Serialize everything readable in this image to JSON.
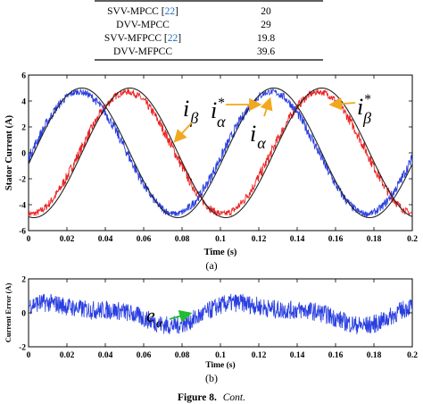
{
  "table": {
    "rows": [
      {
        "method": "SVV-MPCC",
        "ref": "22",
        "value": "20"
      },
      {
        "method": "DVV-MPCC",
        "ref": "",
        "value": "29"
      },
      {
        "method": "SVV-MFPCC",
        "ref": "22",
        "value": "19.8"
      },
      {
        "method": "DVV-MFPCC",
        "ref": "",
        "value": "39.6"
      }
    ],
    "ref_color": "#1f6fbf"
  },
  "chart_data": [
    {
      "type": "line",
      "xlabel": "Time (s)",
      "ylabel": "Stator Current (A)",
      "xlim": [
        0,
        0.2
      ],
      "ylim": [
        -6,
        6
      ],
      "xticks": [
        "0",
        "0.02",
        "0.04",
        "0.06",
        "0.08",
        "0.1",
        "0.12",
        "0.14",
        "0.16",
        "0.18",
        "0.2"
      ],
      "yticks": [
        "6",
        "4",
        "2",
        "0",
        "-2",
        "-4",
        "-6"
      ],
      "frequency_hz": 10,
      "series": [
        {
          "symbol": "iβ",
          "color": "#ee2222",
          "amplitude": 4.7,
          "phase_deg": -95,
          "noise": 0.35,
          "noisy": true
        },
        {
          "symbol": "iα",
          "color": "#2a3fe0",
          "amplitude": 4.7,
          "phase_deg": -5,
          "noise": 0.35,
          "noisy": true
        },
        {
          "symbol": "i*α",
          "color": "#222222",
          "amplitude": 5,
          "phase_deg": -10,
          "noise": 0,
          "noisy": false
        },
        {
          "symbol": "i*β",
          "color": "#222222",
          "amplitude": 5,
          "phase_deg": -100,
          "noise": 0,
          "noisy": false
        }
      ],
      "annotations": [
        {
          "base": "i",
          "subscript": "β",
          "superscript": ""
        },
        {
          "base": "i",
          "subscript": "α",
          "superscript": "*"
        },
        {
          "base": "i",
          "subscript": "α",
          "superscript": ""
        },
        {
          "base": "i",
          "subscript": "β",
          "superscript": "*"
        }
      ],
      "annotation_arrow_color": "#f2a81d",
      "sublabel": "(a)"
    },
    {
      "type": "line",
      "xlabel": "Time (s)",
      "ylabel": "Current Error (A)",
      "xlim": [
        0,
        0.2
      ],
      "ylim": [
        -2,
        2
      ],
      "xticks": [
        "0",
        "0.02",
        "0.04",
        "0.06",
        "0.08",
        "0.1",
        "0.12",
        "0.14",
        "0.16",
        "0.18",
        "0.2"
      ],
      "yticks": [
        "2",
        "0",
        "-2"
      ],
      "series": [
        {
          "symbol": "eα",
          "color": "#2a3fe0",
          "amplitude": 0.6,
          "frequency_hz": 10,
          "phase_deg": 20,
          "noise": 0.55
        }
      ],
      "annotations": [
        {
          "base": "e",
          "subscript": "α",
          "superscript": ""
        }
      ],
      "annotation_arrow_color": "#22bb33",
      "sublabel": "(b)"
    }
  ],
  "caption": {
    "label": "Figure 8.",
    "text": "Cont."
  }
}
